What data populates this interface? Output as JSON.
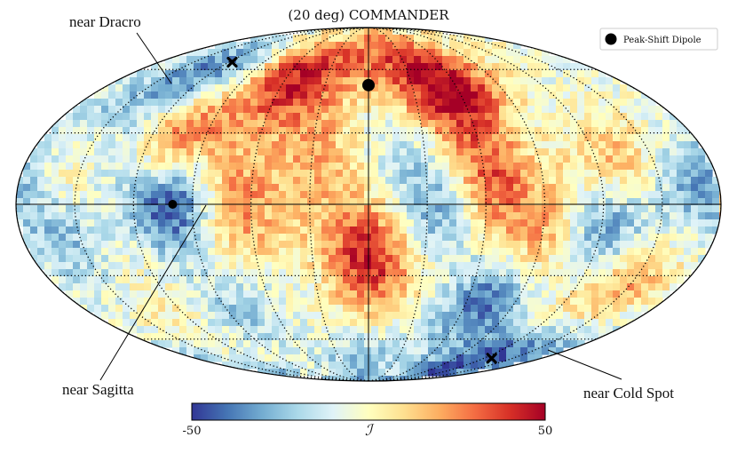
{
  "chart_data": {
    "type": "heatmap",
    "projection": "mollweide",
    "title": "(20 deg) COMMANDER",
    "colorbar": {
      "label": "ℐ",
      "min": -50,
      "max": 50,
      "tick_labels": [
        "-50",
        "50"
      ],
      "colormap": "RdYlBu_r"
    },
    "legend": {
      "position": "top-right",
      "entries": [
        {
          "label": "Peak-Shift Dipole",
          "marker": "circle",
          "color": "#000000"
        }
      ]
    },
    "graticule": {
      "lon_step_deg": 30,
      "lat_step_deg": 30
    },
    "markers": [
      {
        "name": "peak-shift-dipole",
        "type": "circle",
        "lon": 0,
        "lat": 52
      },
      {
        "name": "near-dracro",
        "type": "x",
        "lon": 117,
        "lat": 64
      },
      {
        "name": "near-sagitta",
        "type": "circle",
        "lon": 100,
        "lat": 0
      },
      {
        "name": "near-cold-spot",
        "type": "x",
        "lon": -128,
        "lat": -71
      }
    ],
    "annotations": [
      {
        "text": "near Dracro",
        "target": "near-dracro"
      },
      {
        "text": "near Sagitta",
        "target": "near-sagitta"
      },
      {
        "text": "near Cold Spot",
        "target": "near-cold-spot"
      }
    ],
    "hotspots": [
      {
        "lon": 0,
        "lat": -20,
        "value": 45
      },
      {
        "lon": 58,
        "lat": 60,
        "value": 40
      },
      {
        "lon": 105,
        "lat": 30,
        "value": 35
      },
      {
        "lon": 70,
        "lat": 2,
        "value": 30
      },
      {
        "lon": -60,
        "lat": 10,
        "value": 38
      },
      {
        "lon": -55,
        "lat": 48,
        "value": 35
      },
      {
        "lon": -25,
        "lat": 60,
        "value": 28
      },
      {
        "lon": 150,
        "lat": 15,
        "value": 25
      },
      {
        "lon": -90,
        "lat": -20,
        "value": 22
      },
      {
        "lon": 30,
        "lat": 30,
        "value": 20
      },
      {
        "lon": -150,
        "lat": -40,
        "value": 20
      },
      {
        "lon": 40,
        "lat": -60,
        "value": 15
      },
      {
        "lon": -130,
        "lat": 20,
        "value": 18
      },
      {
        "lon": 100,
        "lat": 0,
        "value": -42
      },
      {
        "lon": 118,
        "lat": 62,
        "value": -38
      },
      {
        "lon": -128,
        "lat": -70,
        "value": -45
      },
      {
        "lon": -75,
        "lat": -40,
        "value": -35
      },
      {
        "lon": -120,
        "lat": -10,
        "value": -30
      },
      {
        "lon": 160,
        "lat": -10,
        "value": -32
      },
      {
        "lon": 135,
        "lat": 15,
        "value": -28
      },
      {
        "lon": 20,
        "lat": -65,
        "value": -30
      },
      {
        "lon": -40,
        "lat": -5,
        "value": -26
      },
      {
        "lon": 165,
        "lat": 40,
        "value": -22
      },
      {
        "lon": -170,
        "lat": 10,
        "value": -24
      },
      {
        "lon": -20,
        "lat": 20,
        "value": -18
      },
      {
        "lon": 90,
        "lat": -45,
        "value": -20
      }
    ]
  }
}
